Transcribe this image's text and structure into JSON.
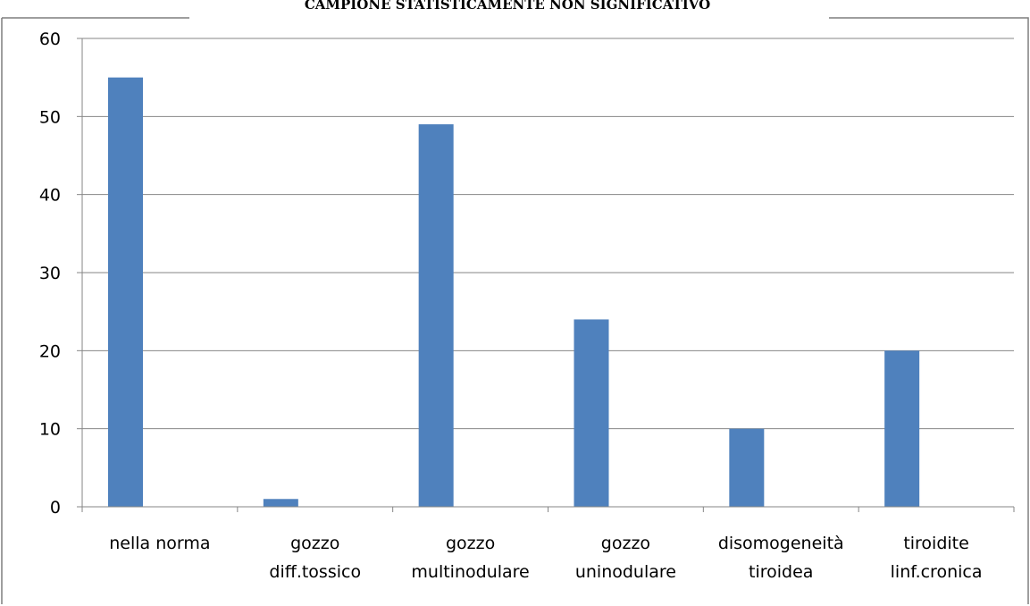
{
  "chart_data": {
    "type": "bar",
    "title": "CAMPIONE STATISTICAMENTE NON SIGNIFICATIVO",
    "categories": [
      [
        "nella norma"
      ],
      [
        "gozzo",
        "diff.tossico"
      ],
      [
        "gozzo",
        "multinodulare"
      ],
      [
        "gozzo",
        "uninodulare"
      ],
      [
        "disomogeneità",
        "tiroidea"
      ],
      [
        "tiroidite",
        "linf.cronica"
      ]
    ],
    "values": [
      55,
      1,
      49,
      24,
      10,
      20
    ],
    "ylim": [
      0,
      60
    ],
    "yticks": [
      "0",
      "10",
      "20",
      "30",
      "40",
      "50",
      "60"
    ],
    "grid": true,
    "legend": "none",
    "bar_color": "#4F81BD",
    "grid_color": "#868686",
    "axis_color": "#868686",
    "frame_color": "#7F7F7F"
  }
}
